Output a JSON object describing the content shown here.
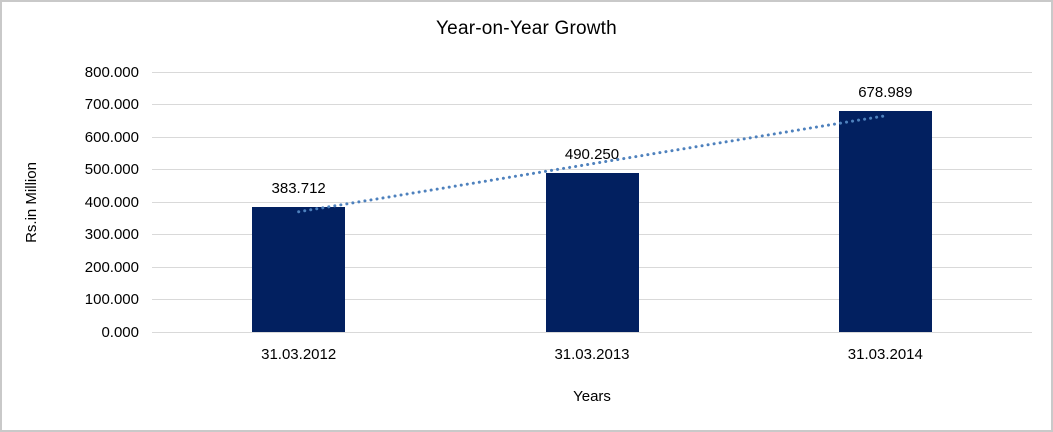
{
  "chart": {
    "title": "Year-on-Year Growth",
    "y_axis_title": "Rs.in Million",
    "x_axis_title": "Years"
  },
  "chart_data": {
    "type": "bar",
    "title": "Year-on-Year Growth",
    "xlabel": "Years",
    "ylabel": "Rs.in Million",
    "categories": [
      "31.03.2012",
      "31.03.2013",
      "31.03.2014"
    ],
    "values": [
      383.712,
      490.25,
      678.989
    ],
    "value_labels": [
      "383.712",
      "490.250",
      "678.989"
    ],
    "ylim": [
      0,
      800
    ],
    "ytick_step": 100,
    "ytick_labels": [
      "0.000",
      "100.000",
      "200.000",
      "300.000",
      "400.000",
      "500.000",
      "600.000",
      "700.000",
      "800.000"
    ],
    "grid": true,
    "legend_position": "none",
    "bar_color": "#022060",
    "gridline_color": "#d9d9d9",
    "trendline": {
      "type": "linear",
      "style": "dotted",
      "color": "#4e81bd"
    }
  }
}
